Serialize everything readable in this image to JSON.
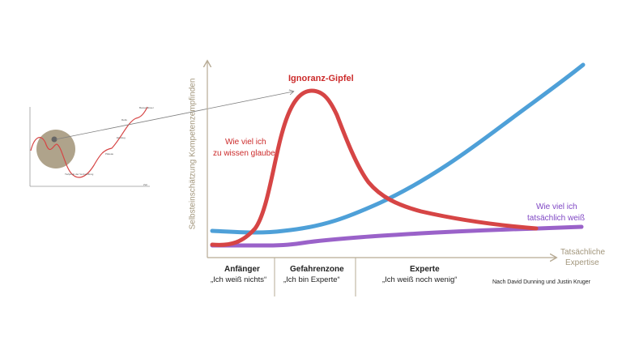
{
  "main_chart": {
    "y_axis_label": "Selbsteinschätzung Kompetenzempfinden",
    "x_axis_label_line1": "Tatsächliche",
    "x_axis_label_line2": "Expertise",
    "peak_label": "Ignoranz-Gipfel",
    "red_curve_label_line1": "Wie viel ich",
    "red_curve_label_line2": "zu wissen glaube",
    "purple_curve_label_line1": "Wie viel ich",
    "purple_curve_label_line2": "tatsächlich weiß",
    "zones": [
      {
        "title": "Anfänger",
        "subtitle": "„Ich weiß nichts“"
      },
      {
        "title": "Gefahrenzone",
        "subtitle": "„Ich bin Experte“"
      },
      {
        "title": "Experte",
        "subtitle": "„Ich weiß noch wenig“"
      }
    ],
    "credit": "Nach David Dunning und Justin Kruger"
  },
  "mini_chart": {
    "labels": [
      "Besserwisser",
      "Einstieg",
      "Tiefpunkt der Verzweiflung",
      "Plateau",
      "Reife",
      "Zeit"
    ]
  },
  "colors": {
    "red_curve": "#d64545",
    "blue_curve": "#4ea0d8",
    "purple_curve": "#9a62c9",
    "axis": "#b7ab95",
    "peak_label": "#cc2b2b"
  }
}
